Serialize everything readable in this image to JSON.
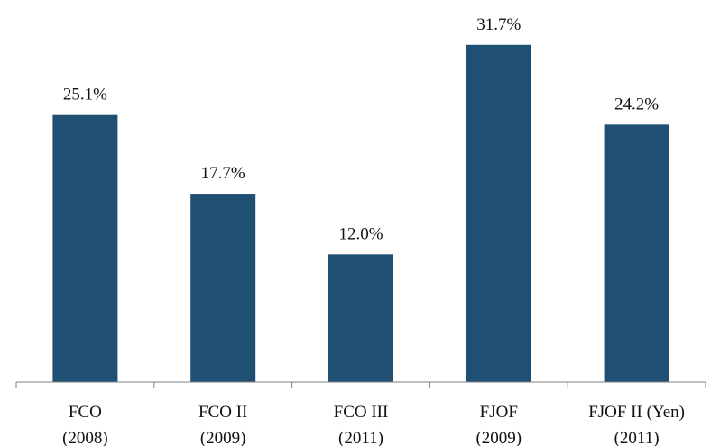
{
  "chart_data": {
    "type": "bar",
    "categories": [
      [
        "FCO",
        "(2008)"
      ],
      [
        "FCO II",
        "(2009)"
      ],
      [
        "FCO III",
        "(2011)"
      ],
      [
        "FJOF",
        "(2009)"
      ],
      [
        "FJOF II (Yen)",
        "(2011)"
      ]
    ],
    "values": [
      25.1,
      17.7,
      12.0,
      31.7,
      24.2
    ],
    "data_labels": [
      "25.1%",
      "17.7%",
      "12.0%",
      "31.7%",
      "24.2%"
    ],
    "title": "",
    "xlabel": "",
    "ylabel": "",
    "ylim": [
      0,
      33.8
    ],
    "grid": false,
    "legend": "none",
    "bar_color": "#1f5073",
    "axis_color": "#808080"
  }
}
